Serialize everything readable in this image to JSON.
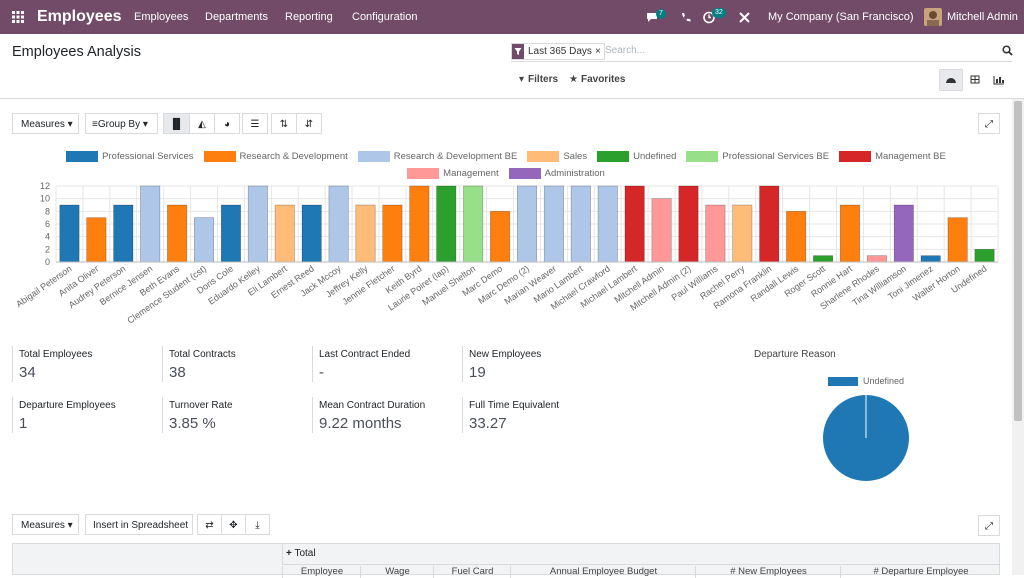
{
  "navbar": {
    "app": "Employees",
    "menu": [
      "Employees",
      "Departments",
      "Reporting",
      "Configuration"
    ],
    "messages_badge": 7,
    "activity_badge": 32,
    "company": "My Company (San Francisco)",
    "user": "Mitchell Admin"
  },
  "control_panel": {
    "title": "Employees Analysis",
    "facet": "Last 365 Days",
    "search_placeholder": "Search...",
    "filters": "Filters",
    "favorites": "Favorites"
  },
  "graph_toolbar": {
    "measures": "Measures",
    "group_by": "Group By"
  },
  "bar_chart": {
    "type": "bar",
    "categories": [
      "Abigail Peterson",
      "Anita Oliver",
      "Audrey Peterson",
      "Bernice Jensen",
      "Beth Evans",
      "Clemence Student (cst)",
      "Doris Cole",
      "Eduardo Kelley",
      "Eli Lambert",
      "Ernest Reed",
      "Jack Mccoy",
      "Jeffrey Kelly",
      "Jennie Fletcher",
      "Keith Byrd",
      "Laurie Poiret (lap)",
      "Manuel Shelton",
      "Marc Demo",
      "Marc Demo (2)",
      "Marian Weaver",
      "Mario Lambert",
      "Michael Crawford",
      "Michael Lambert",
      "Mitchell Admin",
      "Mitchell Admin (2)",
      "Paul Williams",
      "Rachel Perry",
      "Ramona Franklin",
      "Randall Lewis",
      "Roger Scott",
      "Ronnie Hart",
      "Sharlene Rhodes",
      "Tina Williamson",
      "Toni Jimenez",
      "Walter Horton",
      "Undefined"
    ],
    "series": [
      {
        "name": "Professional Services",
        "color": "#1f77b4",
        "values": [
          9,
          null,
          9,
          null,
          null,
          null,
          9,
          null,
          null,
          9,
          null,
          null,
          null,
          null,
          null,
          null,
          null,
          null,
          null,
          null,
          null,
          null,
          null,
          null,
          null,
          null,
          null,
          null,
          null,
          null,
          null,
          null,
          1,
          null,
          null
        ]
      },
      {
        "name": "Research & Development",
        "color": "#ff7f0e",
        "values": [
          null,
          7,
          null,
          null,
          9,
          null,
          null,
          null,
          null,
          null,
          null,
          null,
          9,
          12,
          null,
          null,
          8,
          null,
          null,
          null,
          null,
          null,
          null,
          null,
          null,
          null,
          null,
          8,
          null,
          9,
          null,
          null,
          null,
          7,
          null
        ]
      },
      {
        "name": "Research & Development BE",
        "color": "#aec7e8",
        "values": [
          null,
          null,
          null,
          12,
          null,
          7,
          null,
          12,
          null,
          null,
          12,
          null,
          null,
          null,
          null,
          null,
          null,
          12,
          12,
          12,
          12,
          null,
          null,
          null,
          null,
          null,
          null,
          null,
          null,
          null,
          null,
          null,
          null,
          null,
          null
        ]
      },
      {
        "name": "Sales",
        "color": "#ffbb78",
        "values": [
          null,
          null,
          null,
          null,
          null,
          null,
          null,
          null,
          9,
          null,
          null,
          9,
          null,
          null,
          null,
          null,
          null,
          null,
          null,
          null,
          null,
          null,
          null,
          null,
          null,
          9,
          null,
          null,
          null,
          null,
          null,
          null,
          null,
          null,
          null
        ]
      },
      {
        "name": "Undefined",
        "color": "#2ca02c",
        "values": [
          null,
          null,
          null,
          null,
          null,
          null,
          null,
          null,
          null,
          null,
          null,
          null,
          null,
          null,
          12,
          null,
          null,
          null,
          null,
          null,
          null,
          null,
          null,
          null,
          null,
          null,
          null,
          null,
          1,
          null,
          null,
          null,
          null,
          null,
          2
        ]
      },
      {
        "name": "Professional Services BE",
        "color": "#98df8a",
        "values": [
          null,
          null,
          null,
          null,
          null,
          null,
          null,
          null,
          null,
          null,
          null,
          null,
          null,
          null,
          null,
          12,
          null,
          null,
          null,
          null,
          null,
          null,
          null,
          null,
          null,
          null,
          null,
          null,
          null,
          null,
          null,
          null,
          null,
          null,
          null
        ]
      },
      {
        "name": "Management BE",
        "color": "#d62728",
        "values": [
          null,
          null,
          null,
          null,
          null,
          null,
          null,
          null,
          null,
          null,
          null,
          null,
          null,
          null,
          null,
          null,
          null,
          null,
          null,
          null,
          null,
          12,
          null,
          12,
          null,
          null,
          12,
          null,
          null,
          null,
          null,
          null,
          null,
          null,
          null
        ]
      },
      {
        "name": "Management",
        "color": "#ff9896",
        "values": [
          null,
          null,
          null,
          null,
          null,
          null,
          null,
          null,
          null,
          null,
          null,
          null,
          null,
          null,
          null,
          null,
          null,
          null,
          null,
          null,
          null,
          null,
          10,
          null,
          9,
          null,
          null,
          null,
          null,
          null,
          1,
          null,
          null,
          null,
          null
        ]
      },
      {
        "name": "Administration",
        "color": "#9467bd",
        "values": [
          null,
          null,
          null,
          null,
          null,
          null,
          null,
          null,
          null,
          null,
          null,
          null,
          null,
          null,
          null,
          null,
          null,
          null,
          null,
          null,
          null,
          null,
          null,
          null,
          null,
          null,
          null,
          null,
          null,
          null,
          null,
          9,
          null,
          null,
          null
        ]
      }
    ],
    "ylim": [
      0,
      12
    ],
    "yticks": [
      0,
      2,
      4,
      6,
      8,
      10,
      12
    ],
    "grid": true
  },
  "kpis": [
    {
      "label": "Total Employees",
      "value": 34
    },
    {
      "label": "Total Contracts",
      "value": 38
    },
    {
      "label": "Last Contract Ended",
      "value": "-"
    },
    {
      "label": "New Employees",
      "value": 19
    },
    {
      "label": "Departure Employees",
      "value": 1
    },
    {
      "label": "Turnover Rate",
      "value": "3.85 %"
    },
    {
      "label": "Mean Contract Duration",
      "value": "9.22 months"
    },
    {
      "label": "Full Time Equivalent",
      "value": 33.27
    }
  ],
  "pie_chart": {
    "type": "pie",
    "title": "Departure Reason",
    "categories": [
      "Undefined"
    ],
    "values": [
      1
    ],
    "colors": [
      "#1f77b4"
    ]
  },
  "pivot_toolbar": {
    "measures": "Measures",
    "insert": "Insert in Spreadsheet"
  },
  "pivot": {
    "total": "Total",
    "columns": [
      "Employee",
      "Wage",
      "Fuel Card",
      "Annual Employee Budget",
      "# New Employees",
      "# Departure Employee"
    ]
  }
}
